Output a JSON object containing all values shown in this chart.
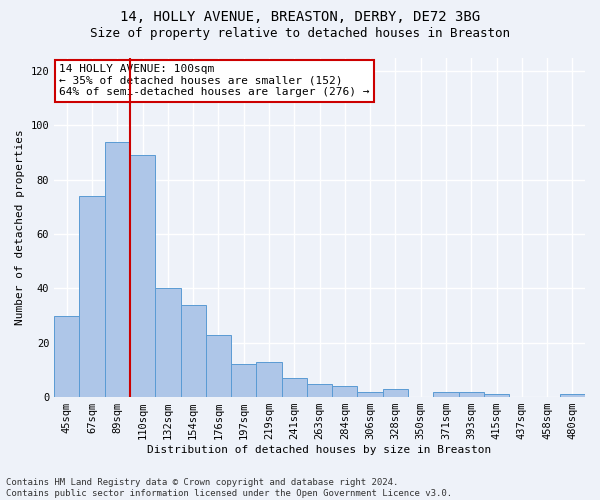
{
  "title": "14, HOLLY AVENUE, BREASTON, DERBY, DE72 3BG",
  "subtitle": "Size of property relative to detached houses in Breaston",
  "xlabel": "Distribution of detached houses by size in Breaston",
  "ylabel": "Number of detached properties",
  "bar_labels": [
    "45sqm",
    "67sqm",
    "89sqm",
    "110sqm",
    "132sqm",
    "154sqm",
    "176sqm",
    "197sqm",
    "219sqm",
    "241sqm",
    "263sqm",
    "284sqm",
    "306sqm",
    "328sqm",
    "350sqm",
    "371sqm",
    "393sqm",
    "415sqm",
    "437sqm",
    "458sqm",
    "480sqm"
  ],
  "bar_values": [
    30,
    74,
    94,
    89,
    40,
    34,
    23,
    12,
    13,
    7,
    5,
    4,
    2,
    3,
    0,
    2,
    2,
    1,
    0,
    0,
    1
  ],
  "bar_color": "#aec6e8",
  "bar_edge_color": "#5a9bd4",
  "property_line_x": 2.5,
  "vline_color": "#cc0000",
  "annotation_text": "14 HOLLY AVENUE: 100sqm\n← 35% of detached houses are smaller (152)\n64% of semi-detached houses are larger (276) →",
  "annotation_box_color": "#ffffff",
  "annotation_box_edge": "#cc0000",
  "ylim": [
    0,
    125
  ],
  "yticks": [
    0,
    20,
    40,
    60,
    80,
    100,
    120
  ],
  "footer_text": "Contains HM Land Registry data © Crown copyright and database right 2024.\nContains public sector information licensed under the Open Government Licence v3.0.",
  "bg_color": "#eef2f9",
  "grid_color": "#ffffff",
  "title_fontsize": 10,
  "subtitle_fontsize": 9,
  "label_fontsize": 8,
  "tick_fontsize": 7.5,
  "footer_fontsize": 6.5,
  "annotation_fontsize": 8
}
